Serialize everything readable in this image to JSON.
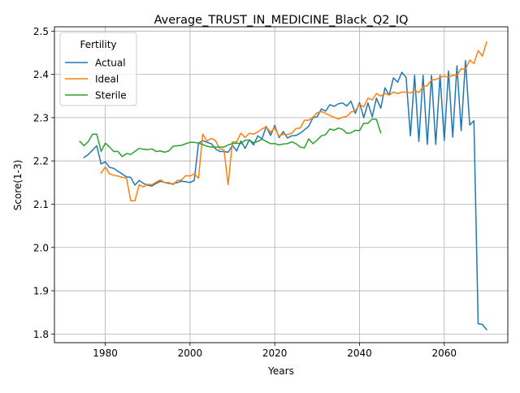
{
  "chart_data": {
    "type": "line",
    "title": "Average_TRUST_IN_MEDICINE_Black_Q2_IQ",
    "xlabel": "Years",
    "ylabel": "Score(1-3)",
    "xlim": [
      1968,
      2075
    ],
    "ylim": [
      1.78,
      2.51
    ],
    "xticks": [
      1980,
      2000,
      2020,
      2040,
      2060
    ],
    "yticks": [
      1.8,
      1.9,
      2.0,
      2.1,
      2.2,
      2.3,
      2.4,
      2.5
    ],
    "grid": true,
    "legend": {
      "title": "Fertility",
      "position": "top-left"
    },
    "series": [
      {
        "name": "Actual",
        "color": "#1f77b4",
        "x": [
          1975,
          1976,
          1977,
          1978,
          1979,
          1980,
          1981,
          1982,
          1983,
          1984,
          1985,
          1986,
          1987,
          1988,
          1989,
          1990,
          1991,
          1992,
          1993,
          1994,
          1995,
          1996,
          1997,
          1998,
          1999,
          2000,
          2001,
          2002,
          2003,
          2004,
          2005,
          2006,
          2007,
          2008,
          2009,
          2010,
          2011,
          2012,
          2013,
          2014,
          2015,
          2016,
          2017,
          2018,
          2019,
          2020,
          2021,
          2022,
          2023,
          2024,
          2025,
          2026,
          2027,
          2028,
          2029,
          2030,
          2031,
          2032,
          2033,
          2034,
          2035,
          2036,
          2037,
          2038,
          2039,
          2040,
          2041,
          2042,
          2043,
          2044,
          2045,
          2046,
          2047,
          2048,
          2049,
          2050,
          2051,
          2052,
          2053,
          2054,
          2055,
          2056,
          2057,
          2058,
          2059,
          2060,
          2061,
          2062,
          2063,
          2064,
          2065,
          2066,
          2067,
          2068,
          2069,
          2070
        ],
        "y": [
          2.208,
          2.215,
          2.225,
          2.235,
          2.193,
          2.198,
          2.185,
          2.183,
          2.176,
          2.17,
          2.163,
          2.162,
          2.144,
          2.155,
          2.148,
          2.144,
          2.142,
          2.148,
          2.153,
          2.15,
          2.148,
          2.147,
          2.15,
          2.153,
          2.152,
          2.15,
          2.155,
          2.241,
          2.247,
          2.243,
          2.24,
          2.228,
          2.222,
          2.222,
          2.22,
          2.236,
          2.223,
          2.246,
          2.229,
          2.249,
          2.237,
          2.258,
          2.251,
          2.28,
          2.259,
          2.282,
          2.254,
          2.268,
          2.253,
          2.258,
          2.259,
          2.264,
          2.272,
          2.28,
          2.3,
          2.302,
          2.32,
          2.315,
          2.33,
          2.326,
          2.332,
          2.334,
          2.327,
          2.338,
          2.31,
          2.335,
          2.3,
          2.334,
          2.302,
          2.345,
          2.322,
          2.369,
          2.352,
          2.392,
          2.382,
          2.405,
          2.393,
          2.258,
          2.398,
          2.245,
          2.398,
          2.238,
          2.398,
          2.238,
          2.398,
          2.247,
          2.408,
          2.255,
          2.42,
          2.27,
          2.432,
          2.283,
          2.293,
          1.824,
          1.822,
          1.81
        ]
      },
      {
        "name": "Ideal",
        "color": "#ff7f0e",
        "x": [
          1979,
          1980,
          1981,
          1982,
          1983,
          1984,
          1985,
          1986,
          1987,
          1988,
          1989,
          1990,
          1991,
          1992,
          1993,
          1994,
          1995,
          1996,
          1997,
          1998,
          1999,
          2000,
          2001,
          2002,
          2003,
          2004,
          2005,
          2006,
          2007,
          2008,
          2009,
          2010,
          2011,
          2012,
          2013,
          2014,
          2015,
          2016,
          2017,
          2018,
          2019,
          2020,
          2021,
          2022,
          2023,
          2024,
          2025,
          2026,
          2027,
          2028,
          2029,
          2030,
          2031,
          2032,
          2033,
          2034,
          2035,
          2036,
          2037,
          2038,
          2039,
          2040,
          2041,
          2042,
          2043,
          2044,
          2045,
          2046,
          2047,
          2048,
          2049,
          2050,
          2051,
          2052,
          2053,
          2054,
          2055,
          2056,
          2057,
          2058,
          2059,
          2060,
          2061,
          2062,
          2063,
          2064,
          2065,
          2066,
          2067,
          2068,
          2069,
          2070
        ],
        "y": [
          2.172,
          2.186,
          2.17,
          2.167,
          2.165,
          2.162,
          2.16,
          2.108,
          2.108,
          2.145,
          2.14,
          2.146,
          2.145,
          2.151,
          2.156,
          2.15,
          2.15,
          2.145,
          2.155,
          2.156,
          2.166,
          2.165,
          2.17,
          2.16,
          2.262,
          2.246,
          2.252,
          2.247,
          2.228,
          2.226,
          2.145,
          2.244,
          2.244,
          2.264,
          2.254,
          2.264,
          2.262,
          2.267,
          2.274,
          2.279,
          2.266,
          2.277,
          2.257,
          2.262,
          2.261,
          2.264,
          2.275,
          2.276,
          2.294,
          2.294,
          2.301,
          2.311,
          2.314,
          2.31,
          2.305,
          2.301,
          2.297,
          2.301,
          2.303,
          2.313,
          2.316,
          2.331,
          2.325,
          2.345,
          2.341,
          2.356,
          2.35,
          2.356,
          2.352,
          2.359,
          2.356,
          2.359,
          2.359,
          2.357,
          2.363,
          2.358,
          2.372,
          2.374,
          2.387,
          2.388,
          2.393,
          2.396,
          2.393,
          2.398,
          2.398,
          2.413,
          2.412,
          2.433,
          2.425,
          2.455,
          2.442,
          2.475
        ]
      },
      {
        "name": "Sterile",
        "color": "#2ca02c",
        "x": [
          1974,
          1975,
          1976,
          1977,
          1978,
          1979,
          1980,
          1981,
          1982,
          1983,
          1984,
          1985,
          1986,
          1987,
          1988,
          1989,
          1990,
          1991,
          1992,
          1993,
          1994,
          1995,
          1996,
          1997,
          1998,
          1999,
          2000,
          2001,
          2002,
          2003,
          2004,
          2005,
          2006,
          2007,
          2008,
          2009,
          2010,
          2011,
          2012,
          2013,
          2014,
          2015,
          2016,
          2017,
          2018,
          2019,
          2020,
          2021,
          2022,
          2023,
          2024,
          2025,
          2026,
          2027,
          2028,
          2029,
          2030,
          2031,
          2032,
          2033,
          2034,
          2035,
          2036,
          2037,
          2038,
          2039,
          2040,
          2041,
          2042,
          2043,
          2044,
          2045
        ],
        "y": [
          2.245,
          2.235,
          2.245,
          2.262,
          2.262,
          2.222,
          2.241,
          2.232,
          2.222,
          2.222,
          2.21,
          2.217,
          2.215,
          2.222,
          2.229,
          2.227,
          2.226,
          2.228,
          2.222,
          2.223,
          2.22,
          2.223,
          2.234,
          2.235,
          2.236,
          2.24,
          2.243,
          2.243,
          2.241,
          2.238,
          2.234,
          2.232,
          2.232,
          2.232,
          2.232,
          2.237,
          2.24,
          2.241,
          2.24,
          2.248,
          2.248,
          2.242,
          2.245,
          2.25,
          2.245,
          2.24,
          2.24,
          2.237,
          2.239,
          2.24,
          2.244,
          2.24,
          2.232,
          2.23,
          2.251,
          2.24,
          2.248,
          2.258,
          2.261,
          2.274,
          2.271,
          2.276,
          2.273,
          2.264,
          2.265,
          2.271,
          2.27,
          2.287,
          2.287,
          2.297,
          2.296,
          2.265
        ]
      }
    ]
  }
}
